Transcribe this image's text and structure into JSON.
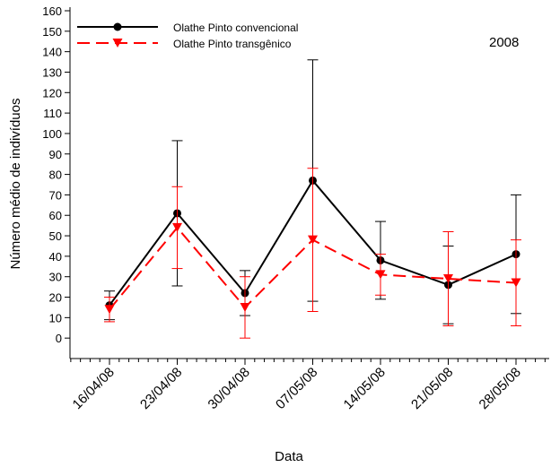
{
  "chart_data": {
    "type": "line",
    "y_label": "Número médio de indivíduos",
    "x_label": "Data",
    "annotation": "2008",
    "categories": [
      "16/04/08",
      "23/04/08",
      "30/04/08",
      "07/05/08",
      "14/05/08",
      "21/05/08",
      "28/05/08"
    ],
    "series": [
      {
        "name": "Olathe Pinto convencional",
        "color": "#000000",
        "marker": "circle",
        "dashed": false,
        "values": [
          16,
          61,
          22,
          77,
          38,
          26,
          41
        ],
        "errors": [
          7,
          35.5,
          11,
          59,
          19,
          19,
          29
        ]
      },
      {
        "name": "Olathe Pinto transgênico",
        "color": "#ff0000",
        "marker": "triangle-down",
        "dashed": true,
        "values": [
          14,
          54,
          15,
          48,
          31,
          29,
          27
        ],
        "errors": [
          6,
          20,
          15,
          35,
          10,
          23,
          21
        ]
      }
    ],
    "ylim": [
      -10,
      160
    ],
    "yticks": [
      0,
      10,
      20,
      30,
      40,
      50,
      60,
      70,
      80,
      90,
      100,
      110,
      120,
      130,
      140,
      150,
      160
    ],
    "legend": "upper left"
  }
}
